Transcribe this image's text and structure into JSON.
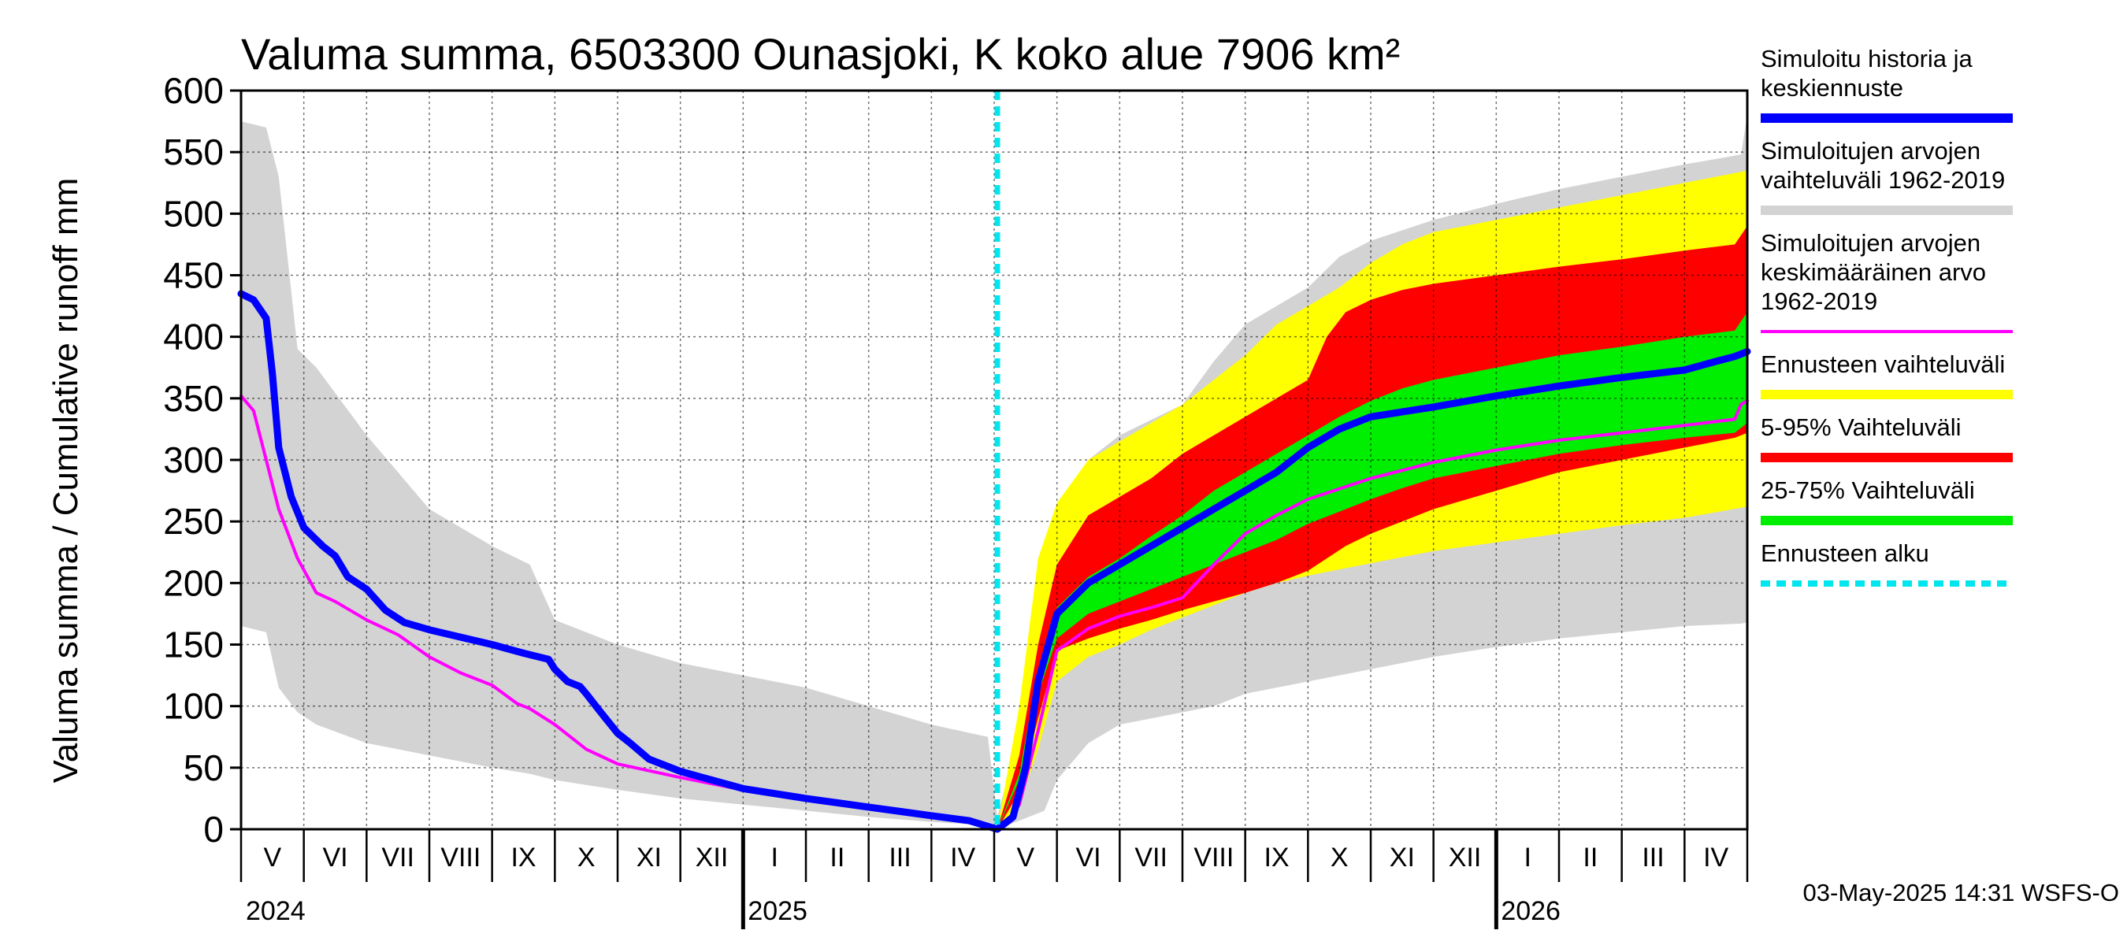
{
  "chart_data": {
    "type": "area",
    "title": "Valuma summa, 6503300 Ounasjoki, K koko alue 7906 km²",
    "ylabel": "Valuma summa / Cumulative runoff    mm",
    "ylim": [
      0,
      600
    ],
    "yticks": [
      0,
      50,
      100,
      150,
      200,
      250,
      300,
      350,
      400,
      450,
      500,
      550,
      600
    ],
    "xlim": [
      0,
      24
    ],
    "x_unit": "months since 2024-04-20",
    "forecast_start": 12.05,
    "months": [
      {
        "label": "V",
        "x": 0.4
      },
      {
        "label": "VI",
        "x": 1.4
      },
      {
        "label": "VII",
        "x": 2.4
      },
      {
        "label": "VIII",
        "x": 3.4
      },
      {
        "label": "IX",
        "x": 4.4
      },
      {
        "label": "X",
        "x": 5.4
      },
      {
        "label": "XI",
        "x": 6.4
      },
      {
        "label": "XII",
        "x": 7.4
      },
      {
        "label": "I",
        "x": 8.4
      },
      {
        "label": "II",
        "x": 9.4
      },
      {
        "label": "III",
        "x": 10.4
      },
      {
        "label": "IV",
        "x": 11.4
      },
      {
        "label": "V",
        "x": 12.4
      },
      {
        "label": "VI",
        "x": 13.4
      },
      {
        "label": "VII",
        "x": 14.4
      },
      {
        "label": "VIII",
        "x": 15.4
      },
      {
        "label": "IX",
        "x": 16.4
      },
      {
        "label": "X",
        "x": 17.4
      },
      {
        "label": "XI",
        "x": 18.4
      },
      {
        "label": "XII",
        "x": 19.4
      },
      {
        "label": "I",
        "x": 20.4
      },
      {
        "label": "II",
        "x": 21.4
      },
      {
        "label": "III",
        "x": 22.4
      },
      {
        "label": "IV",
        "x": 23.4
      }
    ],
    "years": [
      {
        "label": "2024",
        "x": 0.0
      },
      {
        "label": "2025",
        "x": 8.0
      },
      {
        "label": "2026",
        "x": 20.0
      }
    ],
    "series": [
      {
        "name": "Simuloitujen arvojen vaihteluväli 1962-2019",
        "kind": "band",
        "color": "#d3d3d3",
        "x": [
          0,
          0.4,
          0.6,
          0.9,
          1.2,
          2,
          3,
          4,
          4.6,
          5,
          6,
          7,
          8,
          9,
          10,
          11,
          11.9,
          12.05,
          12.3,
          12.8,
          13,
          13.5,
          14,
          15,
          15.5,
          16,
          17,
          17.5,
          18,
          19,
          20,
          21,
          22,
          23,
          23.9,
          24
        ],
        "upper": [
          575,
          570,
          530,
          390,
          375,
          320,
          260,
          230,
          215,
          170,
          150,
          135,
          125,
          115,
          100,
          85,
          75,
          10,
          60,
          210,
          260,
          300,
          320,
          345,
          380,
          410,
          440,
          465,
          478,
          495,
          508,
          520,
          530,
          540,
          548,
          580
        ],
        "lower": [
          165,
          160,
          115,
          95,
          85,
          70,
          60,
          50,
          45,
          40,
          32,
          25,
          20,
          15,
          10,
          6,
          3,
          0,
          5,
          15,
          40,
          70,
          85,
          95,
          100,
          110,
          120,
          125,
          130,
          140,
          148,
          155,
          160,
          165,
          167,
          168
        ]
      },
      {
        "name": "Ennusteen vaihteluväli",
        "kind": "band",
        "color": "#ffff00",
        "x": [
          12.05,
          12.4,
          12.7,
          13,
          13.5,
          14,
          14.5,
          15,
          15.5,
          16,
          16.5,
          17,
          17.5,
          18,
          18.5,
          19,
          20,
          21,
          22,
          23,
          24
        ],
        "upper": [
          0,
          100,
          220,
          265,
          300,
          315,
          330,
          345,
          365,
          385,
          410,
          425,
          440,
          460,
          475,
          485,
          495,
          505,
          515,
          525,
          535
        ],
        "lower": [
          0,
          20,
          65,
          120,
          140,
          150,
          162,
          172,
          182,
          192,
          200,
          206,
          211,
          216,
          221,
          226,
          233,
          240,
          247,
          253,
          262
        ]
      },
      {
        "name": "5-95% Vaihteluväli",
        "kind": "band",
        "color": "#ff0000",
        "x": [
          12.05,
          12.4,
          12.7,
          13,
          13.5,
          14,
          14.5,
          15,
          15.5,
          16,
          16.5,
          17,
          17.3,
          17.6,
          18,
          18.5,
          19,
          20,
          21,
          22,
          23,
          23.8,
          24
        ],
        "upper": [
          0,
          60,
          150,
          215,
          255,
          270,
          285,
          305,
          320,
          335,
          350,
          365,
          400,
          420,
          430,
          438,
          443,
          450,
          457,
          463,
          470,
          475,
          490
        ],
        "lower": [
          0,
          30,
          90,
          145,
          155,
          163,
          170,
          178,
          185,
          192,
          200,
          210,
          220,
          230,
          240,
          250,
          260,
          275,
          290,
          300,
          310,
          318,
          322
        ]
      },
      {
        "name": "25-75% Vaihteluväli",
        "kind": "band",
        "color": "#00ee00",
        "x": [
          12.05,
          12.4,
          12.7,
          13,
          13.5,
          14,
          14.5,
          15,
          15.5,
          16,
          16.5,
          17,
          17.5,
          18,
          18.5,
          19,
          20,
          21,
          22,
          23,
          23.8,
          24
        ],
        "upper": [
          0,
          45,
          130,
          180,
          205,
          220,
          238,
          255,
          275,
          290,
          305,
          320,
          335,
          348,
          358,
          365,
          375,
          385,
          392,
          400,
          405,
          420
        ],
        "lower": [
          0,
          40,
          110,
          155,
          175,
          185,
          195,
          205,
          215,
          225,
          235,
          248,
          258,
          268,
          277,
          285,
          295,
          305,
          312,
          318,
          322,
          330
        ]
      },
      {
        "name": "Simuloitujen arvojen keskimääräinen arvo 1962-2019",
        "kind": "line",
        "color": "#ff00ff",
        "x": [
          0,
          0.2,
          0.4,
          0.6,
          0.9,
          1.2,
          1.5,
          2,
          2.5,
          3,
          3.5,
          4,
          4.4,
          4.6,
          5,
          5.5,
          6,
          7,
          8,
          9,
          10,
          11,
          11.6,
          12.05,
          12.2,
          12.4,
          12.7,
          13,
          13.5,
          14,
          14.5,
          15,
          15.5,
          16,
          16.5,
          17,
          18,
          19,
          20,
          21,
          22,
          23,
          23.8,
          23.9,
          24
        ],
        "values": [
          352,
          340,
          300,
          260,
          220,
          192,
          185,
          170,
          158,
          140,
          127,
          117,
          102,
          98,
          85,
          65,
          53,
          42,
          32,
          25,
          17,
          10,
          6,
          0,
          5,
          20,
          80,
          145,
          163,
          173,
          180,
          188,
          215,
          240,
          255,
          268,
          285,
          298,
          308,
          316,
          322,
          328,
          333,
          345,
          348
        ]
      },
      {
        "name": "Simuloitu historia ja keskiennuste",
        "kind": "line",
        "color": "#0000ff",
        "x": [
          0,
          0.2,
          0.4,
          0.5,
          0.6,
          0.8,
          1.0,
          1.3,
          1.5,
          1.7,
          2.0,
          2.3,
          2.6,
          3.0,
          3.5,
          4.0,
          4.5,
          4.9,
          5.0,
          5.2,
          5.4,
          5.5,
          5.7,
          6.0,
          6.2,
          6.5,
          7.0,
          7.5,
          8.0,
          9.0,
          10.0,
          11.0,
          11.6,
          12.05,
          12.3,
          12.5,
          12.7,
          13.0,
          13.5,
          14.0,
          14.5,
          15.0,
          15.5,
          16.0,
          16.5,
          17.0,
          17.5,
          18.0,
          19.0,
          20.0,
          21.0,
          22.0,
          23.0,
          23.5,
          23.8,
          24.0
        ],
        "values": [
          435,
          430,
          415,
          370,
          310,
          270,
          245,
          230,
          222,
          205,
          195,
          178,
          168,
          162,
          156,
          150,
          143,
          138,
          130,
          120,
          116,
          110,
          97,
          78,
          70,
          57,
          47,
          40,
          33,
          25,
          18,
          11,
          7,
          0,
          10,
          50,
          120,
          175,
          200,
          215,
          230,
          245,
          260,
          275,
          290,
          310,
          325,
          335,
          343,
          352,
          360,
          367,
          373,
          380,
          384,
          388
        ]
      },
      {
        "name": "Ennusteen alku",
        "kind": "vline",
        "color": "#00e5ee"
      }
    ]
  },
  "legend": [
    {
      "lines": [
        "Simuloitu historia ja",
        "keskiennuste"
      ],
      "color": "#0000ff",
      "style": "solid"
    },
    {
      "lines": [
        "Simuloitujen arvojen",
        "vaihteluväli 1962-2019"
      ],
      "color": "#d3d3d3",
      "style": "solid"
    },
    {
      "lines": [
        "Simuloitujen arvojen",
        "keskimääräinen arvo",
        "  1962-2019"
      ],
      "color": "#ff00ff",
      "style": "thin"
    },
    {
      "lines": [
        "Ennusteen vaihteluväli"
      ],
      "color": "#ffff00",
      "style": "solid"
    },
    {
      "lines": [
        "5-95% Vaihteluväli"
      ],
      "color": "#ff0000",
      "style": "solid"
    },
    {
      "lines": [
        "25-75% Vaihteluväli"
      ],
      "color": "#00ee00",
      "style": "solid"
    },
    {
      "lines": [
        "Ennusteen alku"
      ],
      "color": "#00e5ee",
      "style": "dashed"
    }
  ],
  "footer": "03-May-2025 14:31 WSFS-O"
}
